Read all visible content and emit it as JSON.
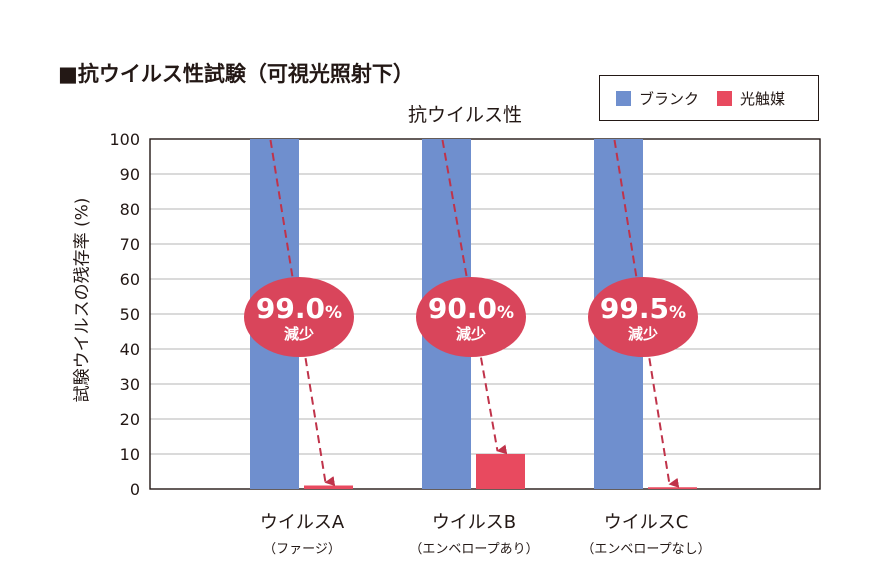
{
  "page_title": "■抗ウイルス性試験（可視光照射下）",
  "chart_data": {
    "type": "bar",
    "title": "抗ウイルス性",
    "ylabel": "試験ウイルスの残存率 (%)",
    "xlabel": "",
    "ylim": [
      0,
      100
    ],
    "yticks": [
      0,
      10,
      20,
      30,
      40,
      50,
      60,
      70,
      80,
      90,
      100
    ],
    "grid": true,
    "legend_position": "top-right",
    "categories": [
      {
        "name": "ウイルスA",
        "sub": "（ファージ）"
      },
      {
        "name": "ウイルスB",
        "sub": "（エンベロープあり）"
      },
      {
        "name": "ウイルスC",
        "sub": "（エンベロープなし）"
      }
    ],
    "series": [
      {
        "name": "ブランク",
        "color": "#6f8fce",
        "values": [
          100,
          100,
          100
        ]
      },
      {
        "name": "光触媒",
        "color": "#e84a5f",
        "values": [
          1.0,
          10.0,
          0.5
        ]
      }
    ],
    "annotations": [
      {
        "value": "99.0",
        "unit": "%",
        "label": "減少"
      },
      {
        "value": "90.0",
        "unit": "%",
        "label": "減少"
      },
      {
        "value": "99.5",
        "unit": "%",
        "label": "減少"
      }
    ],
    "annotation_color": "#d9455b",
    "arrow_color": "#c0334a"
  }
}
